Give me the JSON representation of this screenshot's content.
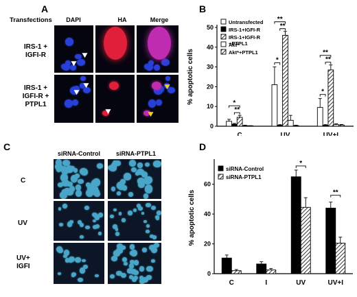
{
  "panel_a": {
    "letter": "A",
    "transfections_label": "Transfections",
    "columns": [
      "DAPI",
      "HA",
      "Merge"
    ],
    "rows": [
      {
        "label_line1": "IRS-1 +",
        "label_line2": "IGFI-R",
        "label_line3": ""
      },
      {
        "label_line1": "IRS-1 +",
        "label_line2": "IGFI-R +",
        "label_line3": "PTPL1"
      }
    ]
  },
  "panel_c": {
    "letter": "C",
    "columns": [
      "siRNA-Control",
      "siRNA-PTPL1"
    ],
    "rows": [
      {
        "label_line1": "C",
        "label_line2": ""
      },
      {
        "label_line1": "UV",
        "label_line2": ""
      },
      {
        "label_line1": "UV+",
        "label_line2": "IGFI"
      }
    ]
  },
  "colors": {
    "dapi": "#2840d8",
    "ha": "#e0203a",
    "cells_c": "#4aa6c8"
  },
  "chart_data": [
    {
      "panel": "B",
      "type": "bar",
      "ylabel": "% apoptotic cells",
      "ylim": [
        0,
        50
      ],
      "yticks": [
        0,
        10,
        20,
        30,
        40,
        50
      ],
      "categories": [
        "C",
        "UV",
        "UV+I"
      ],
      "legend_placement": "top-left",
      "series": [
        {
          "name": "Untransfected",
          "pattern": "white",
          "values": [
            2.5,
            21,
            9.5
          ],
          "errors": [
            1,
            9,
            4.5
          ]
        },
        {
          "name": "IRS-1+IGFI-R",
          "pattern": "black",
          "values": [
            1,
            0.5,
            0.5
          ],
          "errors": [
            0.4,
            0.3,
            0.3
          ]
        },
        {
          "name": "IRS-1+IGFI-R +PTPL1",
          "pattern": "hatch",
          "values": [
            4.5,
            46,
            28.5
          ],
          "errors": [
            1,
            2,
            2.5
          ]
        },
        {
          "name": "Akt*",
          "pattern": "white",
          "values": [
            0.3,
            3,
            0.8
          ],
          "errors": [
            0.2,
            2.5,
            0.4
          ]
        },
        {
          "name": "Akt*+PTPL1",
          "pattern": "hatch",
          "values": [
            0.2,
            0.3,
            0.6
          ],
          "errors": [
            0.1,
            0.2,
            0.3
          ]
        }
      ],
      "annotations": [
        "*",
        "**",
        "*",
        "**",
        "**",
        "*",
        "**",
        "**"
      ]
    },
    {
      "panel": "D",
      "type": "bar",
      "ylabel": "% apoptotic cells",
      "ylim": [
        0,
        75
      ],
      "yticks": [
        0,
        20,
        40,
        60
      ],
      "categories": [
        "C",
        "I",
        "UV",
        "UV+I"
      ],
      "legend_placement": "top-left",
      "series": [
        {
          "name": "siRNA-Control",
          "pattern": "black",
          "values": [
            10.5,
            6.5,
            65,
            44
          ],
          "errors": [
            2,
            1.5,
            4.5,
            4
          ]
        },
        {
          "name": "siRNA-PTPL1",
          "pattern": "hatch",
          "values": [
            2,
            2.5,
            44.5,
            20.5
          ],
          "errors": [
            0.8,
            1,
            6.5,
            4
          ]
        }
      ],
      "annotations": [
        "*",
        "**"
      ]
    }
  ]
}
